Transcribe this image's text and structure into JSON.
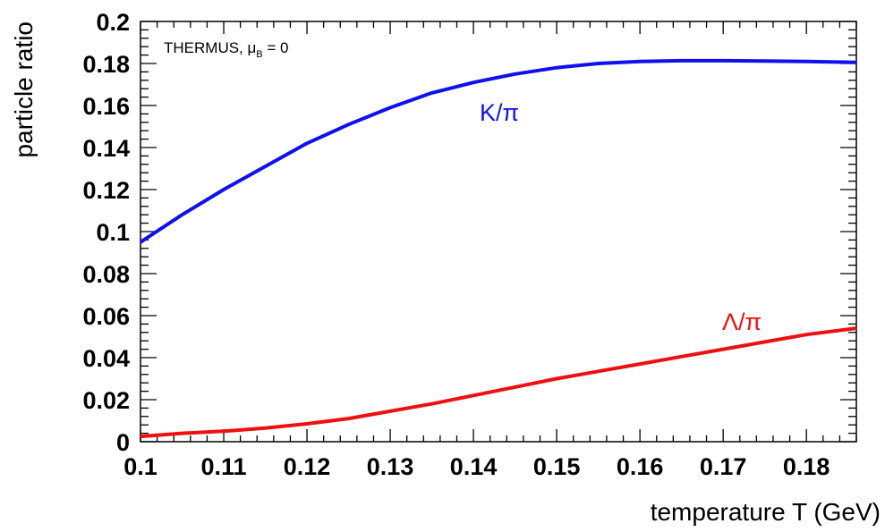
{
  "chart_data": {
    "type": "line",
    "xlabel": "temperature T (GeV)",
    "ylabel": "particle ratio",
    "xlim": [
      0.1,
      0.186
    ],
    "ylim": [
      0,
      0.2
    ],
    "x_ticks": [
      "0.1",
      "0.11",
      "0.12",
      "0.13",
      "0.14",
      "0.15",
      "0.16",
      "0.17",
      "0.18"
    ],
    "y_ticks": [
      "0",
      "0.02",
      "0.04",
      "0.06",
      "0.08",
      "0.1",
      "0.12",
      "0.14",
      "0.16",
      "0.18",
      "0.2"
    ],
    "annotation": {
      "text": "THERMUS, μ",
      "subscript": "B",
      "suffix": " = 0"
    },
    "grid": false,
    "series": [
      {
        "name": "K/π",
        "color": "#1010ee",
        "x": [
          0.1,
          0.105,
          0.11,
          0.115,
          0.12,
          0.125,
          0.13,
          0.135,
          0.14,
          0.145,
          0.15,
          0.155,
          0.16,
          0.165,
          0.17,
          0.175,
          0.18,
          0.186
        ],
        "y": [
          0.095,
          0.108,
          0.12,
          0.131,
          0.142,
          0.151,
          0.159,
          0.166,
          0.171,
          0.175,
          0.178,
          0.18,
          0.181,
          0.1813,
          0.1813,
          0.1812,
          0.181,
          0.1805
        ]
      },
      {
        "name": "Λ/π",
        "color": "#ee1010",
        "x": [
          0.1,
          0.105,
          0.11,
          0.115,
          0.12,
          0.125,
          0.13,
          0.135,
          0.14,
          0.145,
          0.15,
          0.155,
          0.16,
          0.165,
          0.17,
          0.175,
          0.18,
          0.186
        ],
        "y": [
          0.0025,
          0.004,
          0.005,
          0.0065,
          0.0085,
          0.011,
          0.0145,
          0.018,
          0.022,
          0.026,
          0.03,
          0.0335,
          0.037,
          0.0405,
          0.044,
          0.0475,
          0.051,
          0.054
        ]
      }
    ]
  }
}
